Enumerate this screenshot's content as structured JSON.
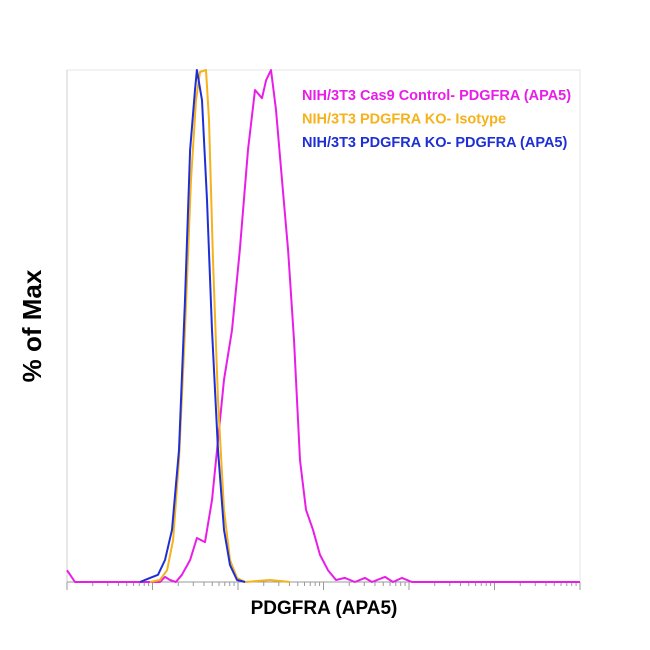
{
  "chart_data": {
    "type": "line",
    "xlabel": "PDGFRA (APA5)",
    "ylabel": "% of Max",
    "xscale": "log",
    "xlim": [
      1,
      1000000
    ],
    "ylim": [
      0,
      100
    ],
    "series": [
      {
        "name": "NIH/3T3 Cas9 Control- PDGFRA (APA5)",
        "color": "#e81ee8",
        "x": [
          1,
          1.24,
          12.2,
          14.0,
          16.0,
          18.8,
          22.1,
          27.5,
          33.1,
          41.1,
          49.6,
          58.4,
          68.6,
          85.1,
          105,
          131,
          158,
          191,
          213,
          243,
          278,
          327,
          385,
          452,
          531,
          624,
          754,
          910,
          1130,
          1400,
          1780,
          2330,
          3050,
          3690,
          5240,
          6500,
          8290,
          10800,
          1000000
        ],
        "values": [
          2.3,
          0,
          0,
          1.0,
          0.4,
          0,
          1.4,
          4.3,
          8.6,
          7.8,
          16.0,
          27.7,
          39.5,
          49.2,
          64.8,
          84.4,
          96.1,
          94.5,
          98.0,
          100,
          92.2,
          78.5,
          64.8,
          47.3,
          23.8,
          14.1,
          10.2,
          5.3,
          2.3,
          0.4,
          0.8,
          0,
          0.8,
          0,
          1.0,
          0,
          0.8,
          0,
          0
        ]
      },
      {
        "name": "NIH/3T3 PDGFRA KO- Isotype",
        "color": "#f5b21b",
        "x": [
          9.35,
          12.2,
          14.8,
          17.4,
          20.4,
          24.0,
          28.2,
          32.3,
          35.9,
          42.2,
          45.8,
          51.0,
          58.4,
          68.6,
          80.6,
          97.3,
          121,
          237,
          406
        ],
        "values": [
          0,
          0.4,
          2.3,
          8.2,
          23.8,
          49.2,
          78.5,
          94.1,
          99.6,
          100,
          90.2,
          62.9,
          35.5,
          14.1,
          4.3,
          0.8,
          0,
          0.4,
          0
        ]
      },
      {
        "name": "NIH/3T3 PDGFRA KO- PDGFRA (APA5)",
        "color": "#1f2fd6",
        "x": [
          7.14,
          9.35,
          11.6,
          14.0,
          16.9,
          20.4,
          24.0,
          27.5,
          31.4,
          33.1,
          37.9,
          43.4,
          49.6,
          58.4,
          68.6,
          80.6,
          97.3,
          121
        ],
        "values": [
          0,
          0.8,
          1.4,
          4.3,
          10.2,
          25.8,
          55.1,
          84.4,
          96.1,
          100,
          94.1,
          74.6,
          49.2,
          25.8,
          10.2,
          3.3,
          0.4,
          0
        ]
      }
    ]
  }
}
